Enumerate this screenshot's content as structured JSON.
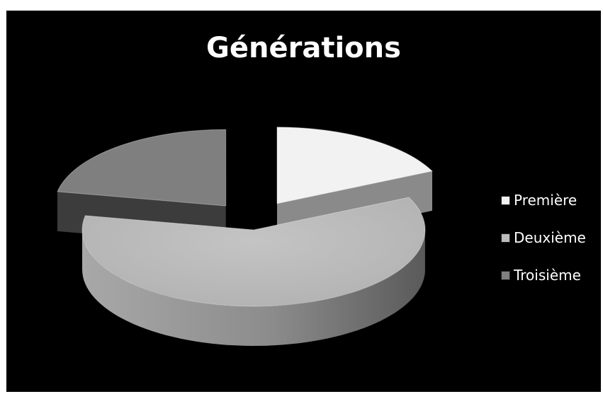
{
  "chart_data": {
    "type": "pie",
    "title": "Générations",
    "categories": [
      "Première",
      "Deuxième",
      "Troisième"
    ],
    "values": [
      18,
      60,
      22
    ],
    "colors": [
      "#f2f2f2",
      "#bdbdbd",
      "#7f7f7f"
    ],
    "legend_position": "right",
    "exploded": [
      "Première",
      "Troisième"
    ],
    "style": "3d"
  }
}
